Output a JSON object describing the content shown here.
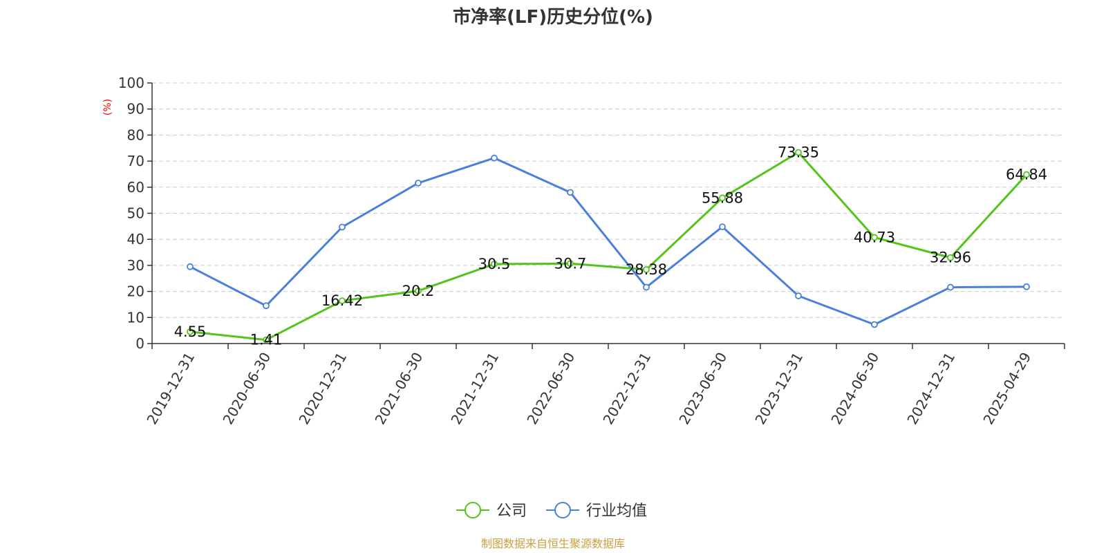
{
  "chart_data": {
    "type": "line",
    "title": "市净率(LF)历史分位(%)",
    "ylabel": "(%)",
    "ylim": [
      0,
      100
    ],
    "yticks": [
      "0",
      "10",
      "20",
      "30",
      "40",
      "50",
      "60",
      "70",
      "80",
      "90",
      "100"
    ],
    "categories": [
      "2019-12-31",
      "2020-06-30",
      "2020-12-31",
      "2021-06-30",
      "2021-12-31",
      "2022-06-30",
      "2022-12-31",
      "2023-06-30",
      "2023-12-31",
      "2024-06-30",
      "2024-12-31",
      "2025-04-29"
    ],
    "grid": true,
    "legend_position": "bottom-center",
    "series": [
      {
        "name": "公司",
        "color": "#52c41a",
        "values": [
          4.55,
          1.41,
          16.42,
          20.2,
          30.5,
          30.7,
          28.38,
          55.88,
          73.35,
          40.73,
          32.96,
          64.84
        ],
        "labels": [
          "4.55",
          "1.41",
          "16.42",
          "20.2",
          "30.5",
          "30.7",
          "28.38",
          "55.88",
          "73.35",
          "40.73",
          "32.96",
          "64.84"
        ]
      },
      {
        "name": "行业均值",
        "color": "#4a7fdc",
        "values": [
          29.5,
          14.5,
          44.7,
          61.6,
          71.2,
          58,
          21.6,
          44.8,
          18.3,
          7.3,
          21.6,
          21.8
        ]
      }
    ],
    "source": "制图数据来自恒生聚源数据库",
    "source_color": "#c8a040"
  }
}
